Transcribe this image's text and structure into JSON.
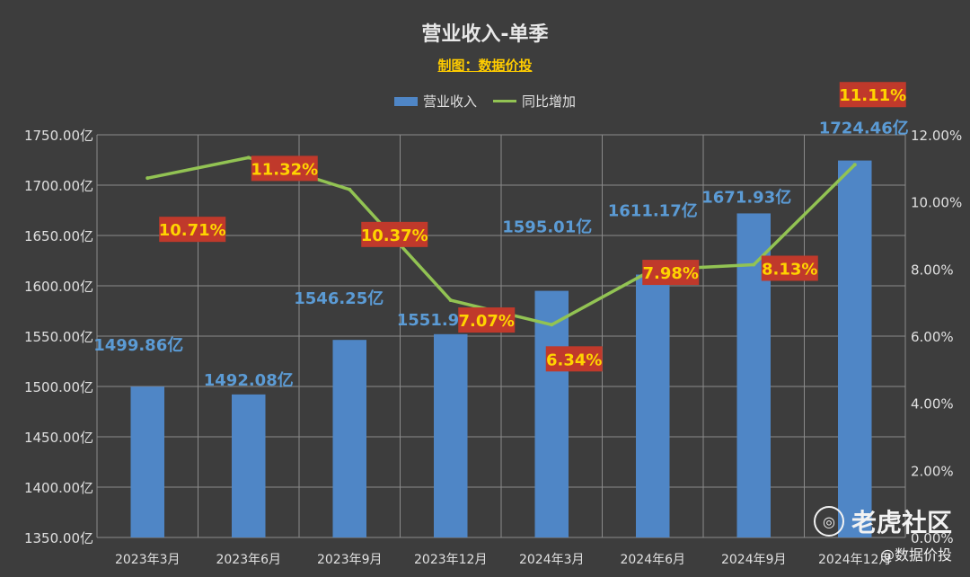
{
  "title": "营业收入-单季",
  "subtitle": "制图：数据价投",
  "watermark": {
    "brand": "老虎社区",
    "handle": "@数据价投"
  },
  "colors": {
    "bar": "#4f86c6",
    "line": "#92c353",
    "bar_label": "#5b9bd5",
    "pct_box": "#c0392b",
    "pct_text": "#ffd400",
    "grid": "#8a8a8a",
    "axis_text": "#e0e0e0"
  },
  "chart_data": {
    "type": "bar",
    "categories": [
      "2023年3月",
      "2023年6月",
      "2023年9月",
      "2023年12月",
      "2024年3月",
      "2024年6月",
      "2024年9月",
      "2024年12月"
    ],
    "series": [
      {
        "name": "营业收入",
        "type": "bar",
        "axis": "left",
        "values": [
          1499.86,
          1492.08,
          1546.25,
          1551.96,
          1595.01,
          1611.17,
          1671.93,
          1724.46
        ],
        "labels": [
          "1499.86亿",
          "1492.08亿",
          "1546.25亿",
          "1551.96亿",
          "1595.01亿",
          "1611.17亿",
          "1671.93亿",
          "1724.46亿"
        ]
      },
      {
        "name": "同比增加",
        "type": "line",
        "axis": "right",
        "values": [
          10.71,
          11.32,
          10.37,
          7.07,
          6.34,
          7.98,
          8.13,
          11.11
        ],
        "labels": [
          "10.71%",
          "11.32%",
          "10.37%",
          "7.07%",
          "6.34%",
          "7.98%",
          "8.13%",
          "11.11%"
        ]
      }
    ],
    "y_left": {
      "ylim": [
        1350,
        1750
      ],
      "ticks": [
        "1350.00亿",
        "1400.00亿",
        "1450.00亿",
        "1500.00亿",
        "1550.00亿",
        "1600.00亿",
        "1650.00亿",
        "1700.00亿",
        "1750.00亿"
      ]
    },
    "y_right": {
      "ylim": [
        0,
        12
      ],
      "ticks": [
        "0.00%",
        "2.00%",
        "4.00%",
        "6.00%",
        "8.00%",
        "10.00%",
        "12.00%"
      ]
    },
    "grid": true,
    "legend": "top-center"
  }
}
